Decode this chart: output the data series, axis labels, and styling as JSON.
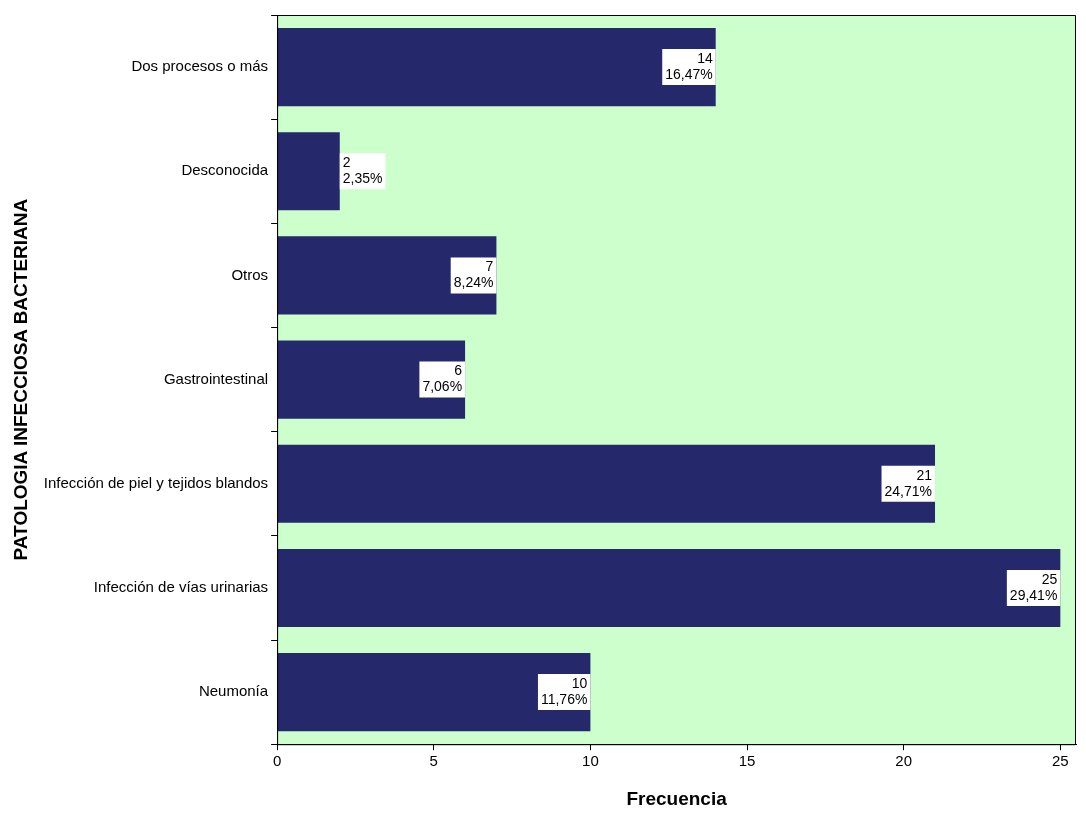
{
  "chart_data": {
    "type": "bar",
    "orientation": "horizontal",
    "categories": [
      "Dos procesos o más",
      "Desconocida",
      "Otros",
      "Gastrointestinal",
      "Infección de piel y tejidos blandos",
      "Infección de vías urinarias",
      "Neumonía"
    ],
    "values": [
      14,
      2,
      7,
      6,
      21,
      25,
      10
    ],
    "value_labels": [
      "14\n16,47%",
      "2\n2,35%",
      "7\n8,24%",
      "6\n7,06%",
      "21\n24,71%",
      "25\n29,41%",
      "10\n11,76%"
    ],
    "color": "#26286c",
    "xlim": [
      0,
      25.5
    ],
    "xticks": [
      0,
      5,
      10,
      15,
      20,
      25
    ],
    "xlabel": "Frecuencia",
    "ylabel": "PATOLOGIA INFECCIOSA BACTERIANA",
    "grid": false,
    "legend": false
  }
}
